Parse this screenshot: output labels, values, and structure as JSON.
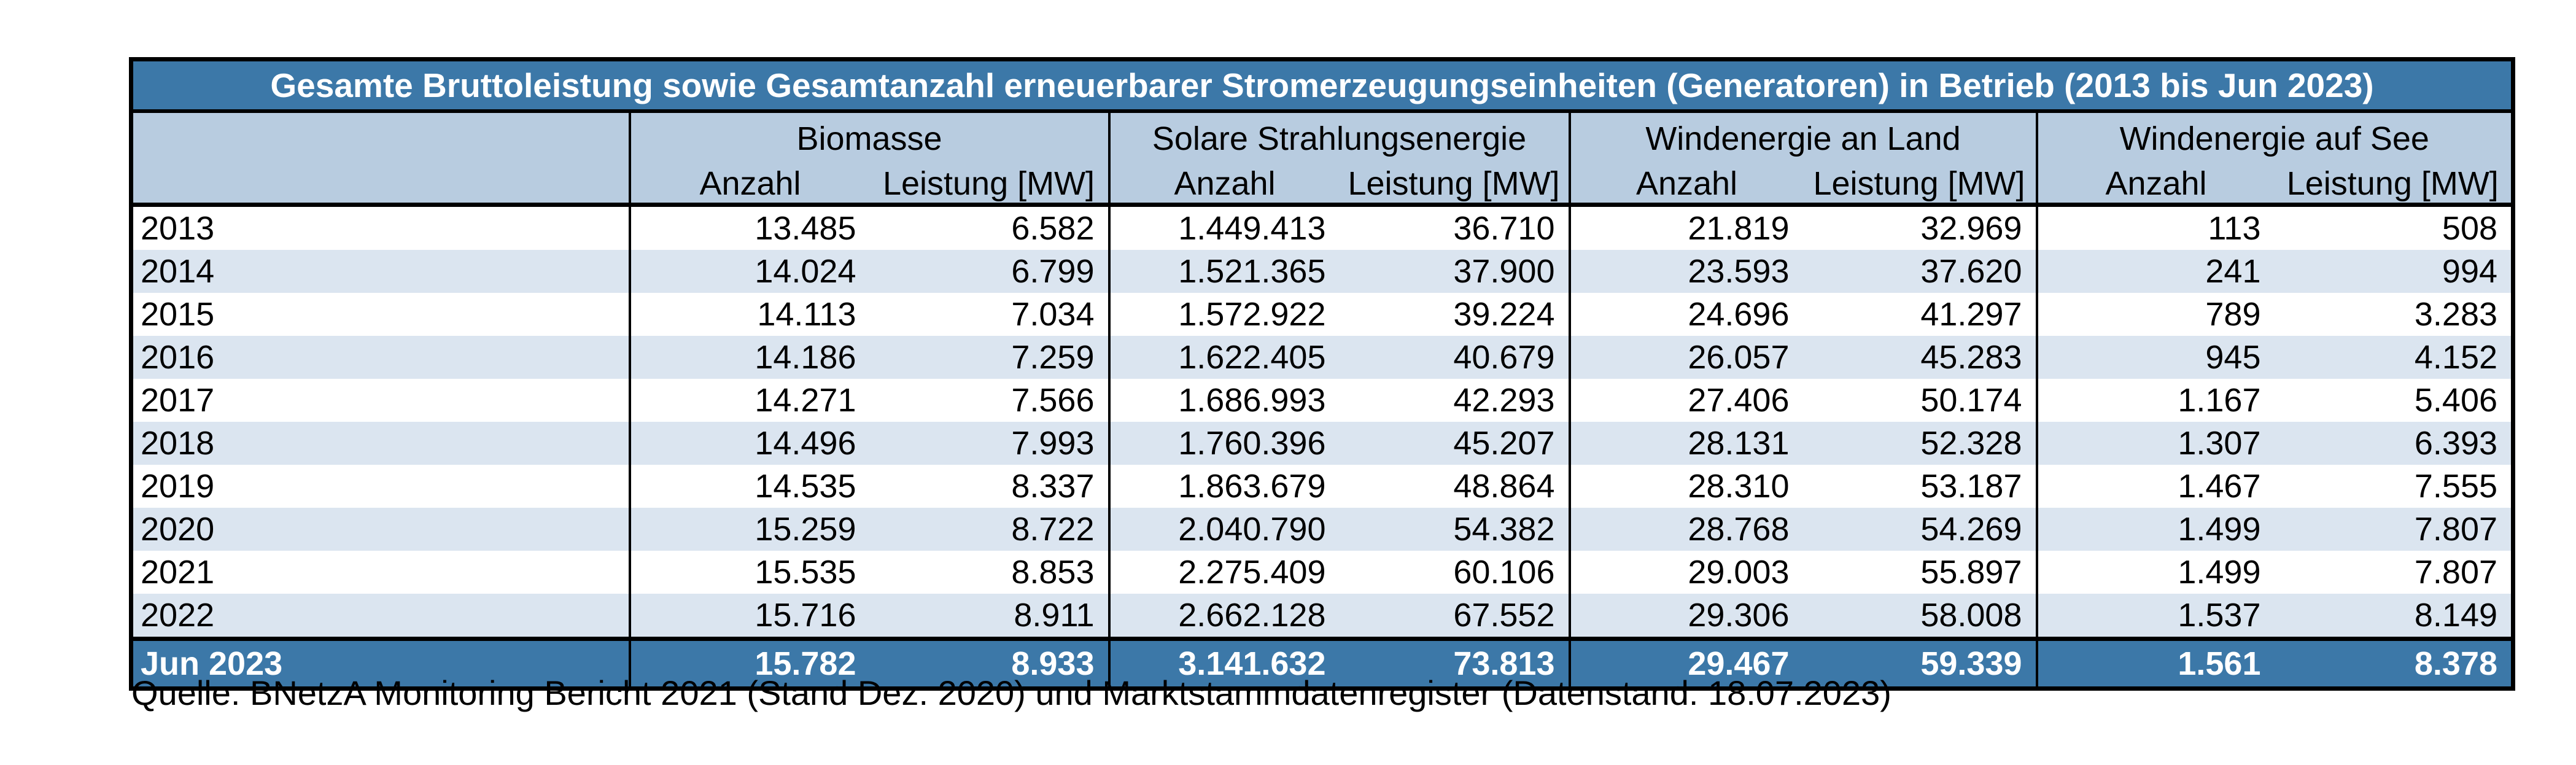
{
  "title": "Gesamte Bruttoleistung sowie Gesamtanzahl erneuerbarer Stromerzeugungseinheiten (Generatoren) in Betrieb (2013 bis Jun 2023)",
  "column_groups": [
    {
      "label": "Biomasse",
      "subcolumns": [
        "Anzahl",
        "Leistung [MW]"
      ]
    },
    {
      "label": "Solare Strahlungsenergie",
      "subcolumns": [
        "Anzahl",
        "Leistung [MW]"
      ]
    },
    {
      "label": "Windenergie an Land",
      "subcolumns": [
        "Anzahl",
        "Leistung [MW]"
      ]
    },
    {
      "label": "Windenergie auf See",
      "subcolumns": [
        "Anzahl",
        "Leistung [MW]"
      ]
    }
  ],
  "rows": [
    {
      "year": "2013",
      "values": [
        "13.485",
        "6.582",
        "1.449.413",
        "36.710",
        "21.819",
        "32.969",
        "113",
        "508"
      ]
    },
    {
      "year": "2014",
      "values": [
        "14.024",
        "6.799",
        "1.521.365",
        "37.900",
        "23.593",
        "37.620",
        "241",
        "994"
      ]
    },
    {
      "year": "2015",
      "values": [
        "14.113",
        "7.034",
        "1.572.922",
        "39.224",
        "24.696",
        "41.297",
        "789",
        "3.283"
      ]
    },
    {
      "year": "2016",
      "values": [
        "14.186",
        "7.259",
        "1.622.405",
        "40.679",
        "26.057",
        "45.283",
        "945",
        "4.152"
      ]
    },
    {
      "year": "2017",
      "values": [
        "14.271",
        "7.566",
        "1.686.993",
        "42.293",
        "27.406",
        "50.174",
        "1.167",
        "5.406"
      ]
    },
    {
      "year": "2018",
      "values": [
        "14.496",
        "7.993",
        "1.760.396",
        "45.207",
        "28.131",
        "52.328",
        "1.307",
        "6.393"
      ]
    },
    {
      "year": "2019",
      "values": [
        "14.535",
        "8.337",
        "1.863.679",
        "48.864",
        "28.310",
        "53.187",
        "1.467",
        "7.555"
      ]
    },
    {
      "year": "2020",
      "values": [
        "15.259",
        "8.722",
        "2.040.790",
        "54.382",
        "28.768",
        "54.269",
        "1.499",
        "7.807"
      ]
    },
    {
      "year": "2021",
      "values": [
        "15.535",
        "8.853",
        "2.275.409",
        "60.106",
        "29.003",
        "55.897",
        "1.499",
        "7.807"
      ]
    },
    {
      "year": "2022",
      "values": [
        "15.716",
        "8.911",
        "2.662.128",
        "67.552",
        "29.306",
        "58.008",
        "1.537",
        "8.149"
      ]
    }
  ],
  "total_row": {
    "year": "Jun 2023",
    "values": [
      "15.782",
      "8.933",
      "3.141.632",
      "73.813",
      "29.467",
      "59.339",
      "1.561",
      "8.378"
    ]
  },
  "source": "Quelle: BNetzA Monitoring Bericht 2021 (Stand Dez. 2020) und Marktstammdatenregister (Datenstand: 18.07.2023)",
  "colors": {
    "header_dark_blue": "#3C78A8",
    "header_light_blue": "#B8CCE0",
    "row_alternate": "#DBE5F0",
    "row_default": "#FFFFFF",
    "border": "#000000"
  }
}
